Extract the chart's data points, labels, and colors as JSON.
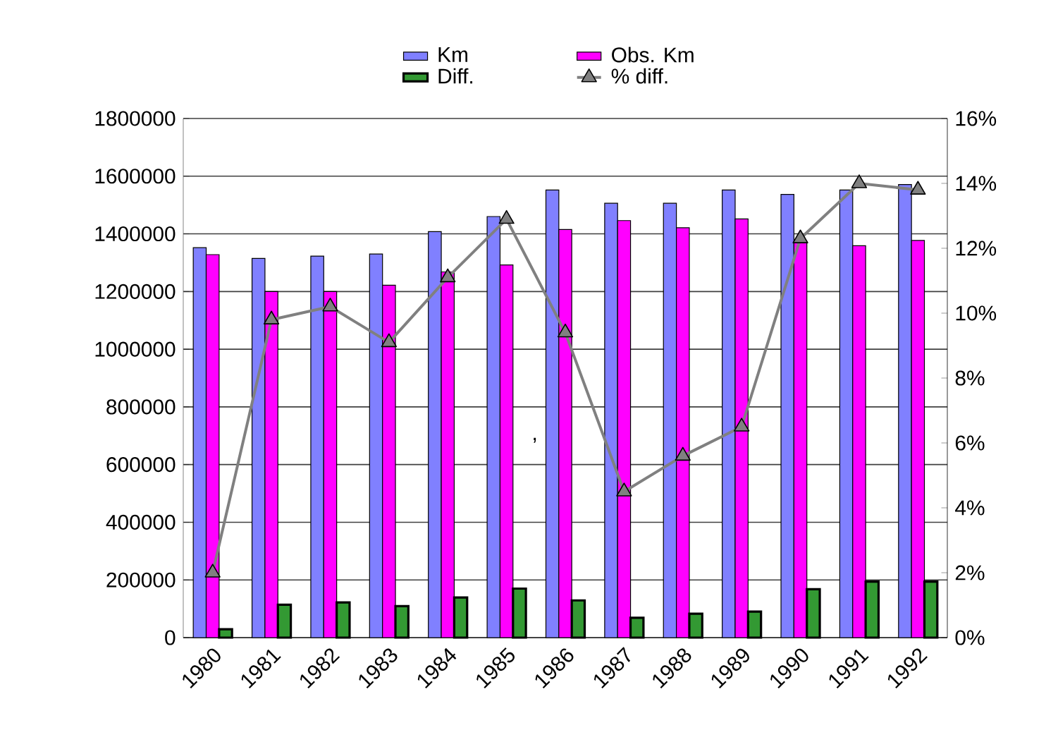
{
  "chart_data": {
    "type": "bar",
    "categories": [
      "1980",
      "1981",
      "1982",
      "1983",
      "1984",
      "1985",
      "1986",
      "1987",
      "1988",
      "1989",
      "1990",
      "1991",
      "1992"
    ],
    "series": [
      {
        "name": "Km",
        "color": "#8080ff",
        "values": [
          1352000,
          1315000,
          1323000,
          1330000,
          1408000,
          1460000,
          1552000,
          1506000,
          1506000,
          1552000,
          1537000,
          1552000,
          1571000
        ]
      },
      {
        "name": "Obs. Km",
        "color": "#ff00ff",
        "values": [
          1328000,
          1200000,
          1200000,
          1222000,
          1268000,
          1292000,
          1415000,
          1446000,
          1421000,
          1452000,
          1370000,
          1359000,
          1377000
        ]
      },
      {
        "name": "Diff.",
        "color": "#339933",
        "values": [
          29000,
          114000,
          122000,
          109000,
          139000,
          170000,
          129000,
          69000,
          83000,
          90000,
          168000,
          194000,
          194000
        ]
      },
      {
        "name": "% diff.",
        "type": "line",
        "axis": "y2",
        "color": "#808080",
        "marker": "triangle",
        "values": [
          2.0,
          9.8,
          10.2,
          9.1,
          11.1,
          12.9,
          9.4,
          4.5,
          5.6,
          6.5,
          12.3,
          14.0,
          13.8
        ]
      }
    ],
    "ylim": [
      0,
      1800000
    ],
    "yticks": [
      0,
      200000,
      400000,
      600000,
      800000,
      1000000,
      1200000,
      1400000,
      1600000,
      1800000
    ],
    "y2lim": [
      0,
      16
    ],
    "y2ticks": [
      {
        "value": 0,
        "label": "0%"
      },
      {
        "value": 2,
        "label": "2%"
      },
      {
        "value": 4,
        "label": "4%"
      },
      {
        "value": 6,
        "label": "6%"
      },
      {
        "value": 8,
        "label": "8%"
      },
      {
        "value": 10,
        "label": "10%"
      },
      {
        "value": 12,
        "label": "12%"
      },
      {
        "value": 14,
        "label": "14%"
      },
      {
        "value": 16,
        "label": "16%"
      }
    ],
    "grid": "y",
    "legend": "top",
    "annotations": [
      ","
    ]
  }
}
